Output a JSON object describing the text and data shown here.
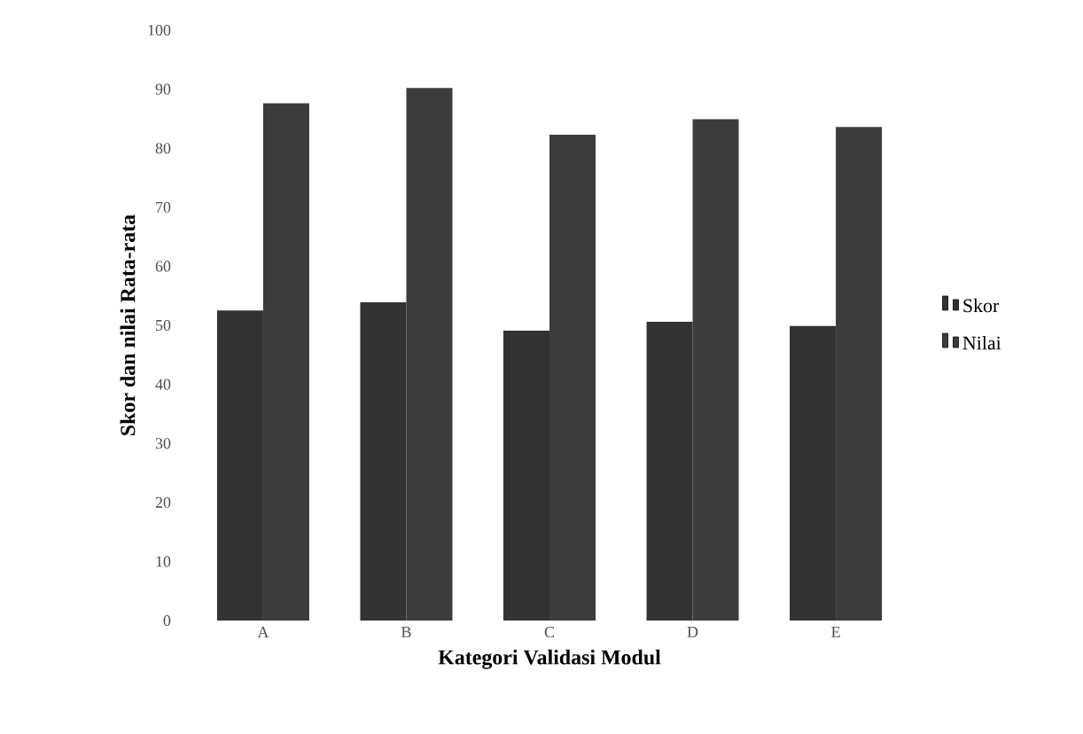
{
  "chart_data": {
    "type": "bar",
    "xlabel": "Kategori Validasi Modul",
    "ylabel": "Skor dan nilai Rata-rata",
    "categories": [
      "A",
      "B",
      "C",
      "D",
      "E"
    ],
    "series": [
      {
        "name": "Skor",
        "color": "#333333",
        "values": [
          52.5,
          53.9,
          49.1,
          50.6,
          49.9
        ]
      },
      {
        "name": "Nilai",
        "color": "#3c3c3c",
        "values": [
          87.6,
          90.2,
          82.3,
          84.9,
          83.6
        ]
      }
    ],
    "ylim": [
      0,
      100
    ],
    "yticks": [
      0,
      10,
      20,
      30,
      40,
      50,
      60,
      70,
      80,
      90,
      100
    ],
    "legend": "right"
  }
}
